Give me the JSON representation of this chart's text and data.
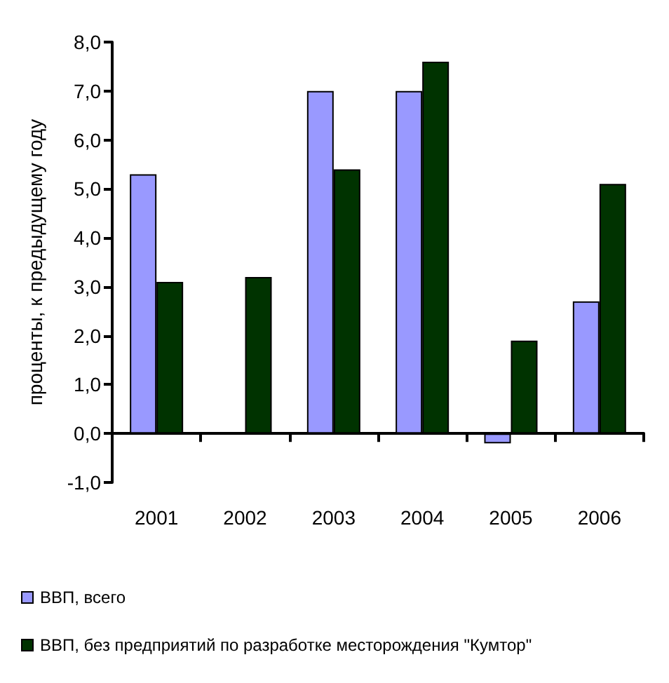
{
  "chart_data": {
    "type": "bar",
    "ylabel": "проценты, к предыдущему году",
    "categories": [
      "2001",
      "2002",
      "2003",
      "2004",
      "2005",
      "2006"
    ],
    "series": [
      {
        "name": "ВВП, всего",
        "color": "#9999ff",
        "values": [
          5.3,
          null,
          7.0,
          7.0,
          -0.2,
          2.7
        ]
      },
      {
        "name": "ВВП, без предприятий по разработке месторождения \"Кумтор\"",
        "color": "#003300",
        "values": [
          3.1,
          3.2,
          5.4,
          7.6,
          1.9,
          5.1
        ]
      }
    ],
    "ylim": [
      -1,
      8
    ],
    "yticks": [
      {
        "value": -1,
        "label": "-1,0"
      },
      {
        "value": 0,
        "label": "0,0"
      },
      {
        "value": 1,
        "label": "1,0"
      },
      {
        "value": 2,
        "label": "2,0"
      },
      {
        "value": 3,
        "label": "3,0"
      },
      {
        "value": 4,
        "label": "4,0"
      },
      {
        "value": 5,
        "label": "5,0"
      },
      {
        "value": 6,
        "label": "6,0"
      },
      {
        "value": 7,
        "label": "7,0"
      },
      {
        "value": 8,
        "label": "8,0"
      }
    ],
    "legend": "bottom"
  }
}
